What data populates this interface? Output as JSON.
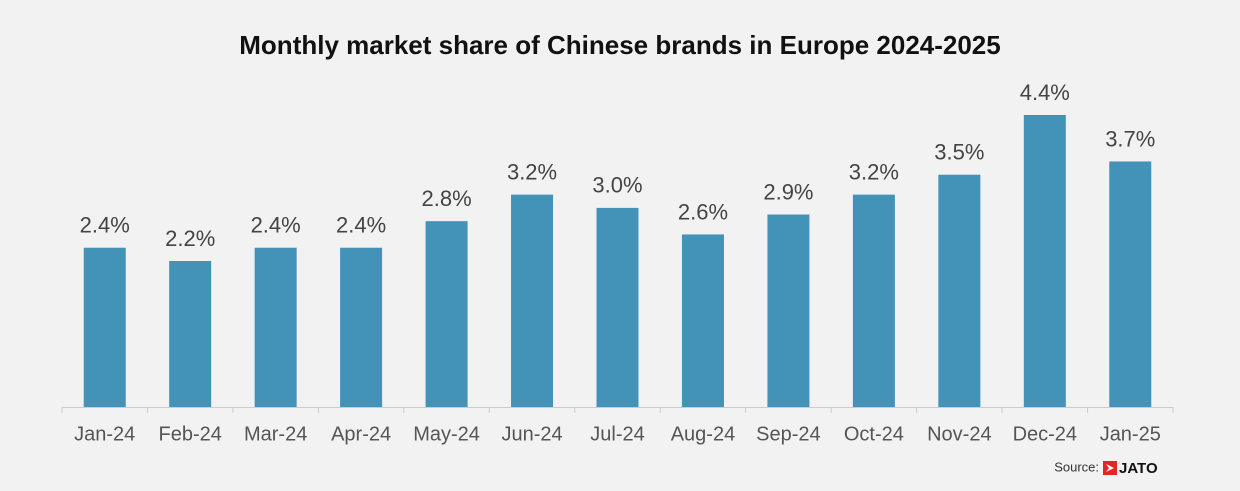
{
  "chart_data": {
    "type": "bar",
    "title": "Monthly market share of Chinese brands in Europe 2024-2025",
    "categories": [
      "Jan-24",
      "Feb-24",
      "Mar-24",
      "Apr-24",
      "May-24",
      "Jun-24",
      "Jul-24",
      "Aug-24",
      "Sep-24",
      "Oct-24",
      "Nov-24",
      "Dec-24",
      "Jan-25"
    ],
    "values": [
      2.4,
      2.2,
      2.4,
      2.4,
      2.8,
      3.2,
      3.0,
      2.6,
      2.9,
      3.2,
      3.5,
      4.4,
      3.7
    ],
    "value_labels": [
      "2.4%",
      "2.2%",
      "2.4%",
      "2.4%",
      "2.8%",
      "3.2%",
      "3.0%",
      "2.6%",
      "2.9%",
      "3.2%",
      "3.5%",
      "4.4%",
      "3.7%"
    ],
    "color": "#4392b8",
    "source": "Source:",
    "logo": "JATO"
  }
}
